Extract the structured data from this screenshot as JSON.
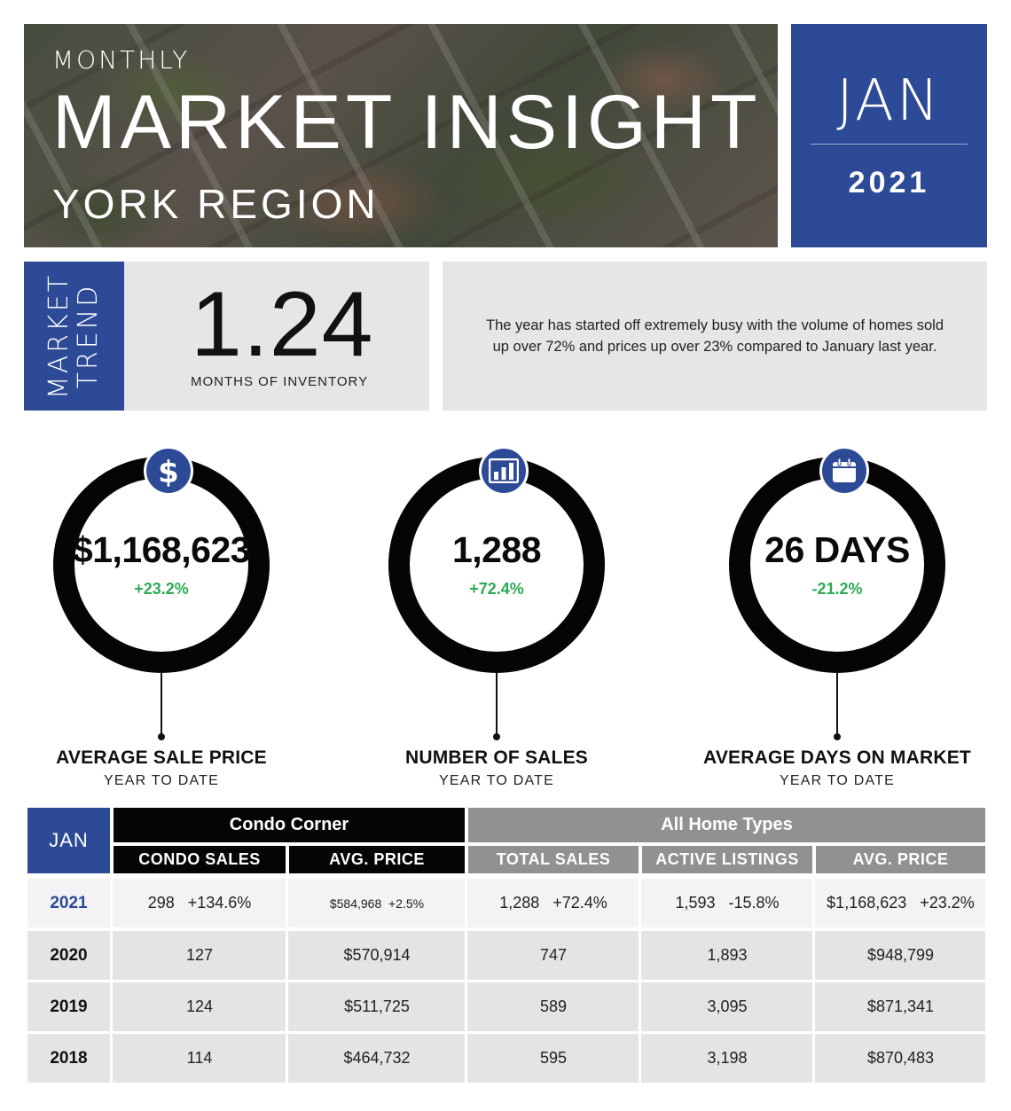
{
  "header": {
    "kicker": "MONTHLY",
    "title": "MARKET INSIGHT",
    "region": "YORK REGION",
    "month": "JAN",
    "year": "2021"
  },
  "market_trend": {
    "label_line1": "MARKET",
    "label_line2": "TREND",
    "value": "1.24",
    "caption": "MONTHS OF INVENTORY",
    "summary": "The year has started off extremely busy with the volume of homes sold up over 72% and prices up over 23% compared to January last year."
  },
  "kpis": [
    {
      "icon": "dollar-icon",
      "value": "$1,168,623",
      "change": "+23.2%",
      "label": "AVERAGE SALE PRICE",
      "sublabel": "YEAR TO DATE"
    },
    {
      "icon": "bar-chart-icon",
      "value": "1,288",
      "change": "+72.4%",
      "label": "NUMBER OF SALES",
      "sublabel": "YEAR TO DATE"
    },
    {
      "icon": "calendar-icon",
      "value": "26 DAYS",
      "change": "-21.2%",
      "label": "AVERAGE DAYS ON MARKET",
      "sublabel": "YEAR TO DATE"
    }
  ],
  "colors": {
    "accent_blue": "#2d4a97",
    "positive_green": "#2eaa55",
    "header_gray": "#8f9193"
  },
  "table": {
    "corner": "JAN",
    "group_condo": "Condo Corner",
    "group_all": "All Home Types",
    "columns": [
      "CONDO SALES",
      "AVG. PRICE",
      "TOTAL SALES",
      "ACTIVE LISTINGS",
      "AVG. PRICE"
    ],
    "rows": [
      {
        "year": "2021",
        "cells": [
          "298   +134.6%",
          "$584,968  +2.5%",
          "1,288   +72.4%",
          "1,593   -15.8%",
          "$1,168,623   +23.2%"
        ]
      },
      {
        "year": "2020",
        "cells": [
          "127",
          "$570,914",
          "747",
          "1,893",
          "$948,799"
        ]
      },
      {
        "year": "2019",
        "cells": [
          "124",
          "$511,725",
          "589",
          "3,095",
          "$871,341"
        ]
      },
      {
        "year": "2018",
        "cells": [
          "114",
          "$464,732",
          "595",
          "3,198",
          "$870,483"
        ]
      }
    ]
  }
}
